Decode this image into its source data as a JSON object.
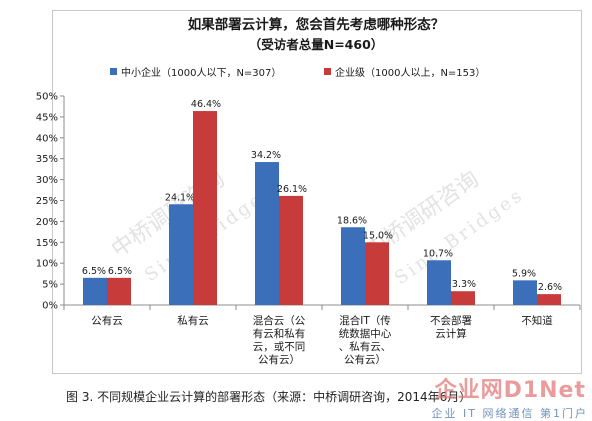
{
  "chart_data": {
    "type": "bar",
    "title": "如果部署云计算，您会首先考虑哪种形态？",
    "subtitle": "（受访者总量N=460）",
    "categories": [
      [
        "公有云"
      ],
      [
        "私有云"
      ],
      [
        "混合云（公",
        "有云和私有",
        "云，或不同",
        "公有云）"
      ],
      [
        "混合IT（传",
        "统数据中心",
        "、私有云、",
        "公有云）"
      ],
      [
        "不会部署",
        "云计算"
      ],
      [
        "不知道"
      ]
    ],
    "series": [
      {
        "name": "中小企业（1000人以下，N=307）",
        "color": "#3b6fba",
        "values": [
          6.5,
          24.1,
          34.2,
          18.6,
          10.7,
          5.9
        ],
        "labels": [
          "6.5%",
          "24.1%",
          "34.2%",
          "18.6%",
          "10.7%",
          "5.9%"
        ]
      },
      {
        "name": "企业级（1000人以上，N=153）",
        "color": "#c73b3b",
        "values": [
          6.5,
          46.4,
          26.1,
          15.0,
          3.3,
          2.6
        ],
        "labels": [
          "6.5%",
          "46.4%",
          "26.1%",
          "15.0%",
          "3.3%",
          "2.6%"
        ]
      }
    ],
    "ylim": [
      0,
      50
    ],
    "yticks": [
      "0%",
      "5%",
      "10%",
      "15%",
      "20%",
      "25%",
      "30%",
      "35%",
      "40%",
      "45%",
      "50%"
    ],
    "legend_position": "top",
    "grid": false
  },
  "watermark": {
    "left": "中桥调研咨询",
    "left_en": "Sino Bridges",
    "right": "中桥调研咨询",
    "right_en": "Sino Bridges"
  },
  "caption": "图 3. 不同规模企业云计算的部署形态（来源：中桥调研咨询，2014年6月）",
  "logo": {
    "main": "企业网D1Net",
    "sub": "企业 IT 网络通信  第1门户"
  }
}
